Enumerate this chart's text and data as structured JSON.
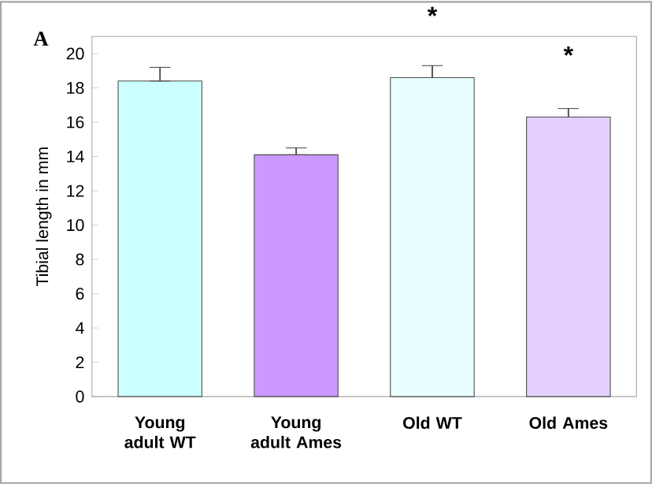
{
  "chart_data": {
    "type": "bar",
    "ylabel": "Tibial length in mm",
    "categories": [
      "Young adult WT",
      "Young adult Ames",
      "Old WT",
      "Old Ames"
    ],
    "values": [
      18.4,
      14.1,
      18.6,
      16.3
    ],
    "errors": [
      [
        18.4,
        19.2
      ],
      [
        14.1,
        14.5
      ],
      [
        18.6,
        19.3
      ],
      [
        16.3,
        16.8
      ]
    ],
    "colors": [
      "#ccffff",
      "#cc99ff",
      "#e8ffff",
      "#e4d0ff"
    ],
    "ylim": [
      0,
      21
    ],
    "yticks": [
      0,
      2,
      4,
      6,
      8,
      10,
      12,
      14,
      16,
      18,
      20
    ],
    "grid": false,
    "annotations": [
      "A",
      "*",
      "*"
    ]
  }
}
